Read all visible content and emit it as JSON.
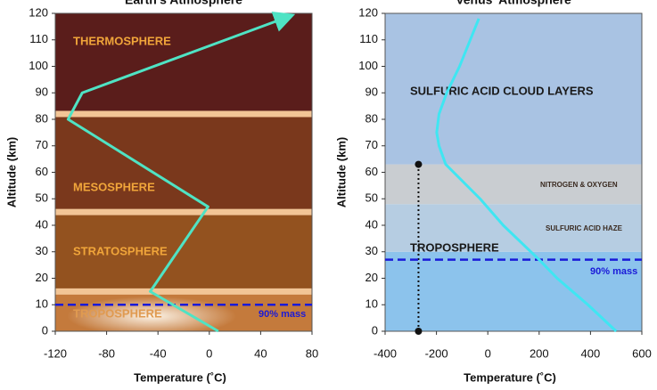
{
  "chart_data": [
    {
      "type": "line",
      "title": "Earth's Atmosphere",
      "x_label": "Temperature (˚C)",
      "y_label": "Altitude (km)",
      "x": [
        7,
        -46,
        -1,
        -110,
        -99,
        63
      ],
      "values": [
        0,
        15,
        47,
        80,
        90,
        119
      ],
      "color": "#4fe3c4",
      "xlim": [
        -120,
        80
      ],
      "xticks": [
        -120,
        -80,
        -40,
        0,
        40,
        80
      ],
      "ylim": [
        0,
        120
      ],
      "yticks": [
        0,
        10,
        20,
        30,
        40,
        50,
        60,
        70,
        80,
        90,
        100,
        110,
        120
      ],
      "layer_boundaries": [
        15,
        45,
        82
      ],
      "layer_colors": [
        "#c47a3c",
        "#93521f",
        "#7a381c",
        "#5a1d1b"
      ],
      "boundary_color": "#f2c596",
      "arrow": true,
      "mass_line": {
        "y": 10,
        "label": "90% mass",
        "color": "#1a1ad8"
      },
      "annotations": [
        "THERMOSPHERE",
        "MESOSPHERE",
        "STRATOSPHERE",
        "TROPOSPHERE"
      ]
    },
    {
      "type": "line",
      "title": "Venus' Atmosphere",
      "x_label": "Temperature (˚C)",
      "y_label": "Altitude (km)",
      "x": [
        500,
        390,
        270,
        200,
        60,
        -30,
        -164,
        -190,
        -199,
        -190,
        -160,
        -110,
        -35
      ],
      "values": [
        0,
        10,
        20,
        27,
        40,
        50,
        63,
        70,
        75,
        82,
        90,
        100,
        118
      ],
      "color": "#3fe6f2",
      "xlim": [
        -400,
        600
      ],
      "xticks": [
        -400,
        -200,
        0,
        200,
        400,
        600
      ],
      "ylim": [
        0,
        120
      ],
      "yticks": [
        0,
        10,
        20,
        30,
        40,
        50,
        60,
        70,
        80,
        90,
        100,
        110,
        120
      ],
      "layer_boundaries": [
        30,
        48,
        63
      ],
      "layer_colors": [
        "#8cc3ec",
        "#b6cde2",
        "#c9cdd1",
        "#a9c3e3"
      ],
      "arrow": false,
      "marker_line": {
        "x": -270,
        "y": [
          0,
          63
        ]
      },
      "mass_line": {
        "y": 27,
        "label": "90% mass",
        "color": "#1a1ad8"
      },
      "annotations": [
        "SULFURIC ACID CLOUD LAYERS",
        "NITROGEN & OXYGEN",
        "SULFURIC ACID HAZE",
        "TROPOSPHERE"
      ]
    }
  ]
}
